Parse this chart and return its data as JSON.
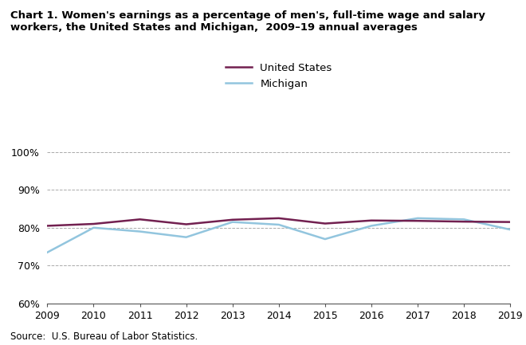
{
  "years": [
    2009,
    2010,
    2011,
    2012,
    2013,
    2014,
    2015,
    2016,
    2017,
    2018,
    2019
  ],
  "us_values": [
    80.5,
    81.0,
    82.2,
    80.9,
    82.1,
    82.5,
    81.1,
    81.9,
    81.8,
    81.6,
    81.5
  ],
  "mi_values": [
    73.5,
    80.0,
    79.0,
    77.5,
    81.5,
    80.8,
    77.0,
    80.5,
    82.5,
    82.2,
    79.5
  ],
  "us_color": "#722050",
  "mi_color": "#92C5DE",
  "title_line1": "Chart 1. Women's earnings as a percentage of men's, full-time wage and salary",
  "title_line2": "workers, the United States and Michigan,  2009–19 annual averages",
  "us_label": "United States",
  "mi_label": "Michigan",
  "ylim": [
    60,
    100
  ],
  "yticks": [
    60,
    70,
    80,
    90,
    100
  ],
  "ytick_labels": [
    "60%",
    "70%",
    "80%",
    "90%",
    "100%"
  ],
  "source_text": "Source:  U.S. Bureau of Labor Statistics.",
  "background_color": "#ffffff",
  "line_width": 1.8
}
